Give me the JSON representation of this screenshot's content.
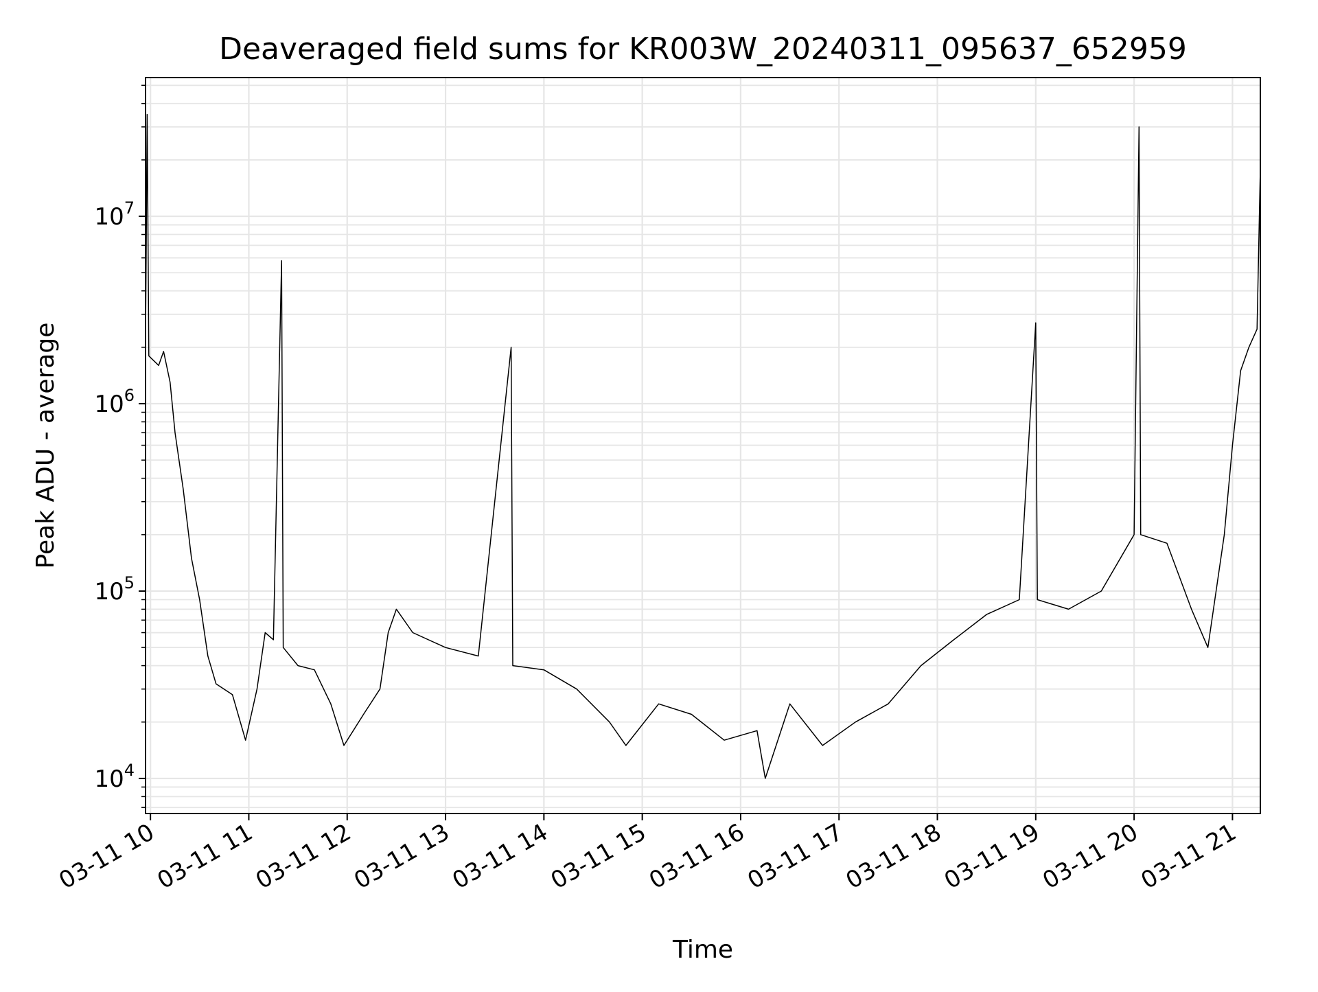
{
  "chart_data": {
    "type": "line",
    "title": "Deaveraged field sums for KR003W_20240311_095637_652959",
    "xlabel": "Time",
    "ylabel": "Peak ADU - average",
    "yscale": "log",
    "grid": true,
    "line_color": "#000000",
    "grid_color": "#e6e6e6",
    "x_tick_rotation_deg": 30,
    "xlim": [
      "2024-03-11T09:57",
      "2024-03-11T21:17"
    ],
    "ylim": [
      6500,
      55000000
    ],
    "x_ticks": [
      {
        "t": "2024-03-11T10:00",
        "label": "03-11 10"
      },
      {
        "t": "2024-03-11T11:00",
        "label": "03-11 11"
      },
      {
        "t": "2024-03-11T12:00",
        "label": "03-11 12"
      },
      {
        "t": "2024-03-11T13:00",
        "label": "03-11 13"
      },
      {
        "t": "2024-03-11T14:00",
        "label": "03-11 14"
      },
      {
        "t": "2024-03-11T15:00",
        "label": "03-11 15"
      },
      {
        "t": "2024-03-11T16:00",
        "label": "03-11 16"
      },
      {
        "t": "2024-03-11T17:00",
        "label": "03-11 17"
      },
      {
        "t": "2024-03-11T18:00",
        "label": "03-11 18"
      },
      {
        "t": "2024-03-11T19:00",
        "label": "03-11 19"
      },
      {
        "t": "2024-03-11T20:00",
        "label": "03-11 20"
      },
      {
        "t": "2024-03-11T21:00",
        "label": "03-11 21"
      }
    ],
    "y_ticks": [
      {
        "value": 10000,
        "base": "10",
        "exp": "4"
      },
      {
        "value": 100000,
        "base": "10",
        "exp": "5"
      },
      {
        "value": 1000000,
        "base": "10",
        "exp": "6"
      },
      {
        "value": 10000000,
        "base": "10",
        "exp": "7"
      }
    ],
    "series": [
      {
        "points": [
          [
            "2024-03-11T09:57",
            2200000
          ],
          [
            "2024-03-11T09:58",
            35000000
          ],
          [
            "2024-03-11T09:59",
            1800000
          ],
          [
            "2024-03-11T10:05",
            1600000
          ],
          [
            "2024-03-11T10:08",
            1900000
          ],
          [
            "2024-03-11T10:12",
            1300000
          ],
          [
            "2024-03-11T10:15",
            700000
          ],
          [
            "2024-03-11T10:20",
            350000
          ],
          [
            "2024-03-11T10:25",
            150000
          ],
          [
            "2024-03-11T10:30",
            90000
          ],
          [
            "2024-03-11T10:35",
            45000
          ],
          [
            "2024-03-11T10:40",
            32000
          ],
          [
            "2024-03-11T10:50",
            28000
          ],
          [
            "2024-03-11T10:58",
            16000
          ],
          [
            "2024-03-11T11:05",
            30000
          ],
          [
            "2024-03-11T11:10",
            60000
          ],
          [
            "2024-03-11T11:15",
            55000
          ],
          [
            "2024-03-11T11:20",
            5800000
          ],
          [
            "2024-03-11T11:21",
            50000
          ],
          [
            "2024-03-11T11:30",
            40000
          ],
          [
            "2024-03-11T11:40",
            38000
          ],
          [
            "2024-03-11T11:50",
            25000
          ],
          [
            "2024-03-11T11:58",
            15000
          ],
          [
            "2024-03-11T12:10",
            22000
          ],
          [
            "2024-03-11T12:20",
            30000
          ],
          [
            "2024-03-11T12:25",
            60000
          ],
          [
            "2024-03-11T12:30",
            80000
          ],
          [
            "2024-03-11T12:40",
            60000
          ],
          [
            "2024-03-11T13:00",
            50000
          ],
          [
            "2024-03-11T13:20",
            45000
          ],
          [
            "2024-03-11T13:40",
            2000000
          ],
          [
            "2024-03-11T13:41",
            40000
          ],
          [
            "2024-03-11T14:00",
            38000
          ],
          [
            "2024-03-11T14:20",
            30000
          ],
          [
            "2024-03-11T14:40",
            20000
          ],
          [
            "2024-03-11T14:50",
            15000
          ],
          [
            "2024-03-11T15:10",
            25000
          ],
          [
            "2024-03-11T15:30",
            22000
          ],
          [
            "2024-03-11T15:50",
            16000
          ],
          [
            "2024-03-11T16:10",
            18000
          ],
          [
            "2024-03-11T16:15",
            10000
          ],
          [
            "2024-03-11T16:30",
            25000
          ],
          [
            "2024-03-11T16:50",
            15000
          ],
          [
            "2024-03-11T17:10",
            20000
          ],
          [
            "2024-03-11T17:30",
            25000
          ],
          [
            "2024-03-11T17:50",
            40000
          ],
          [
            "2024-03-11T18:10",
            55000
          ],
          [
            "2024-03-11T18:30",
            75000
          ],
          [
            "2024-03-11T18:50",
            90000
          ],
          [
            "2024-03-11T19:00",
            2700000
          ],
          [
            "2024-03-11T19:01",
            90000
          ],
          [
            "2024-03-11T19:20",
            80000
          ],
          [
            "2024-03-11T19:40",
            100000
          ],
          [
            "2024-03-11T20:00",
            200000
          ],
          [
            "2024-03-11T20:03",
            30000000
          ],
          [
            "2024-03-11T20:04",
            200000
          ],
          [
            "2024-03-11T20:20",
            180000
          ],
          [
            "2024-03-11T20:35",
            80000
          ],
          [
            "2024-03-11T20:45",
            50000
          ],
          [
            "2024-03-11T20:55",
            200000
          ],
          [
            "2024-03-11T21:00",
            600000
          ],
          [
            "2024-03-11T21:05",
            1500000
          ],
          [
            "2024-03-11T21:10",
            2000000
          ],
          [
            "2024-03-11T21:15",
            2500000
          ],
          [
            "2024-03-11T21:17",
            18000000
          ]
        ]
      }
    ]
  }
}
